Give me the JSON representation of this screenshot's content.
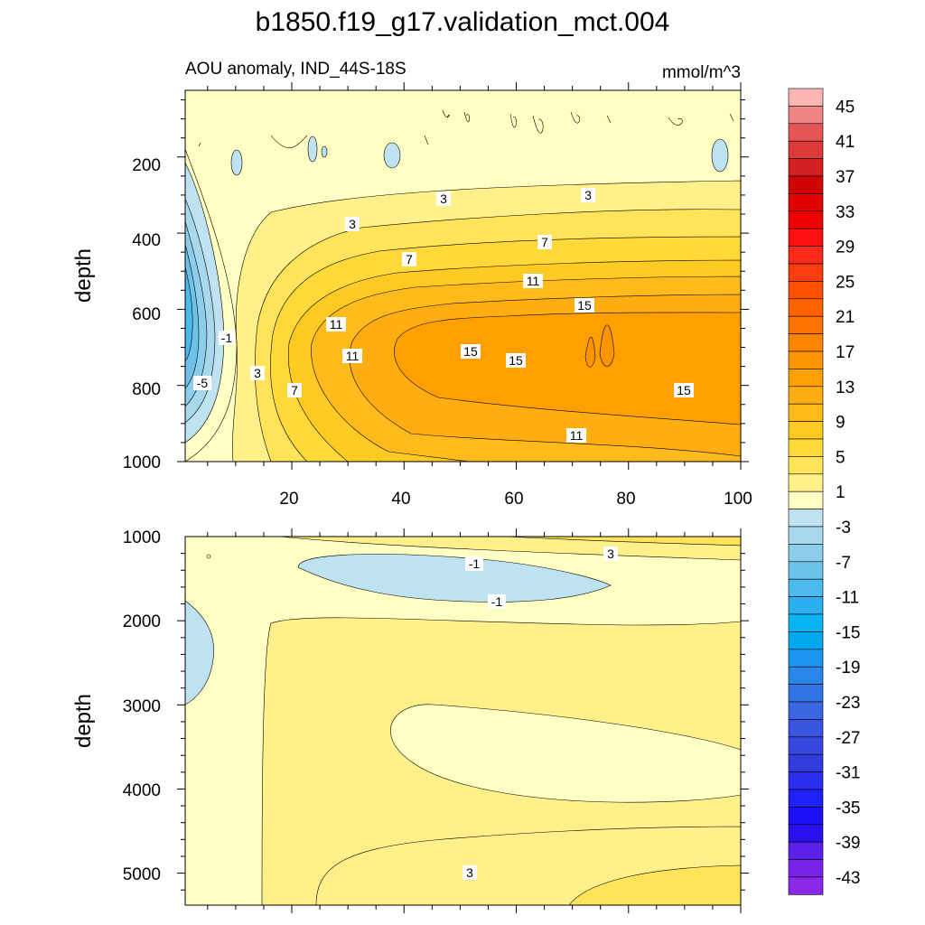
{
  "title": "b1850.f19_g17.validation_mct.004",
  "chart_data": [
    {
      "type": "contour",
      "panel": "upper",
      "subtitle_left": "AOU anomaly, IND_44S-18S",
      "subtitle_right": "mmol/m^3",
      "ylabel": "depth",
      "xlim": [
        1,
        100
      ],
      "ylim": [
        1000,
        25
      ],
      "y_inverted": true,
      "xticks": [
        "20",
        "40",
        "60",
        "80",
        "100"
      ],
      "yticks": [
        "200",
        "400",
        "600",
        "800",
        "1000"
      ],
      "contour_labels": [
        "3",
        "3",
        "3",
        "7",
        "7",
        "11",
        "11",
        "15",
        "11",
        "11",
        "15",
        "15",
        "15",
        "-1",
        "3",
        "7",
        "-5"
      ],
      "notes": "Negative anomaly (to about -9) near the western boundary (x < 8) centered at ~550 m; positive core (~15-19) between x=45 and x=100 at 600-850 m; weak anomalies in the upper 200 m."
    },
    {
      "type": "contour",
      "panel": "lower",
      "ylabel": "depth",
      "xlim": [
        1,
        100
      ],
      "ylim": [
        5400,
        1000
      ],
      "y_inverted": true,
      "yticks": [
        "1000",
        "2000",
        "3000",
        "4000",
        "5000"
      ],
      "contour_labels": [
        "3",
        "-1",
        "-1",
        "3"
      ],
      "notes": "Weak negative anomaly (-1 to -3) centered ~x=50, 1400 m; slight negative anomaly near western edge 1800-2900 m; weak positive (1-3) elsewhere, increasing to ~5 near 5000 m in the east."
    }
  ],
  "colorbar": {
    "labels": [
      "45",
      "41",
      "37",
      "33",
      "29",
      "25",
      "21",
      "17",
      "13",
      "9",
      "5",
      "1",
      "-3",
      "-7",
      "-11",
      "-15",
      "-19",
      "-23",
      "-27",
      "-31",
      "-35",
      "-39",
      "-43"
    ],
    "levels": [
      47,
      45,
      43,
      41,
      39,
      37,
      35,
      33,
      31,
      29,
      27,
      25,
      23,
      21,
      19,
      17,
      15,
      13,
      11,
      9,
      7,
      5,
      3,
      1,
      -1,
      -3,
      -5,
      -7,
      -9,
      -11,
      -13,
      -15,
      -17,
      -19,
      -21,
      -23,
      -25,
      -27,
      -29,
      -31,
      -33,
      -35,
      -37,
      -39,
      -41,
      -43,
      -45
    ],
    "colors": [
      "#fcb4b4",
      "#ee8585",
      "#e55555",
      "#de3a3a",
      "#d42020",
      "#d00404",
      "#e00000",
      "#f00000",
      "#ff1010",
      "#ff2a1a",
      "#ff3c10",
      "#ff5000",
      "#ff6200",
      "#ff7400",
      "#ff8400",
      "#ff9400",
      "#ffa000",
      "#ffad10",
      "#ffbb1c",
      "#ffcb22",
      "#ffd83a",
      "#ffe45a",
      "#fff08a",
      "#ffffc4",
      "#bfe2f0",
      "#a8d8ec",
      "#8ccde9",
      "#6dc2ea",
      "#4cb8ec",
      "#2aaeee",
      "#08b4f4",
      "#00a8f0",
      "#1c96ee",
      "#2a86ea",
      "#3276e6",
      "#3a66e2",
      "#3a56e0",
      "#3848de",
      "#323cdc",
      "#2a2eee",
      "#2020f8",
      "#1c10f8",
      "#2a10f0",
      "#5c20ea",
      "#7a24ea",
      "#8c28ea"
    ]
  }
}
